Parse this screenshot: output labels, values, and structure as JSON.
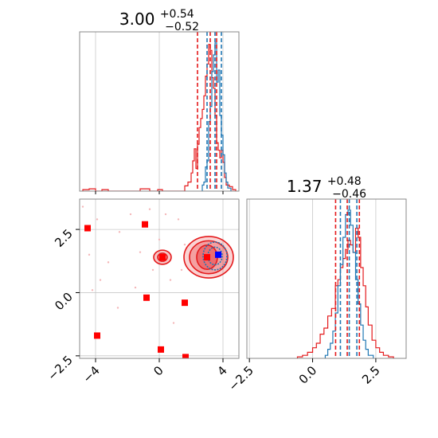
{
  "colors": {
    "posterior_a": "#e41a1c",
    "posterior_b": "#1f77b4",
    "square_a": "#ff0000",
    "square_b": "#0000ff",
    "grid": "#c8c8c8",
    "frame": "#888888"
  },
  "chart_data": {
    "type": "corner",
    "grid": true,
    "parameters": [
      {
        "title": {
          "value": "3.00",
          "upper": "+0.54",
          "lower": "−0.52"
        },
        "xlim": [
          -5.0,
          5.0
        ],
        "ticks": [
          -4,
          0,
          4
        ],
        "tick_labels": [
          "−4",
          "0",
          "4"
        ],
        "quantiles_a": [
          2.4,
          3.2,
          3.6
        ],
        "quantiles_b": [
          3.0,
          3.5,
          3.9
        ]
      },
      {
        "title": {
          "value": "1.37",
          "upper": "+0.48",
          "lower": "−0.46"
        },
        "xlim": [
          -2.6,
          3.7
        ],
        "ticks": [
          -2.5,
          0.0,
          2.5
        ],
        "tick_labels": [
          "−2.5",
          "0.0",
          "2.5"
        ],
        "quantiles_a": [
          0.91,
          1.37,
          1.85
        ],
        "quantiles_b": [
          1.1,
          1.45,
          1.75
        ]
      }
    ],
    "hist1_a": [
      {
        "x0": -4.8,
        "x1": -4.4,
        "h": 0.01
      },
      {
        "x0": -4.4,
        "x1": -4.0,
        "h": 0.015
      },
      {
        "x0": -3.6,
        "x1": -3.2,
        "h": 0.01
      },
      {
        "x0": -1.2,
        "x1": -0.6,
        "h": 0.015
      },
      {
        "x0": -0.1,
        "x1": 0.2,
        "h": 0.01
      },
      {
        "x0": 1.6,
        "x1": 1.8,
        "h": 0.035
      },
      {
        "x0": 1.8,
        "x1": 2.0,
        "h": 0.06
      },
      {
        "x0": 2.0,
        "x1": 2.1,
        "h": 0.12
      },
      {
        "x0": 2.1,
        "x1": 2.2,
        "h": 0.2
      },
      {
        "x0": 2.2,
        "x1": 2.3,
        "h": 0.28
      },
      {
        "x0": 2.3,
        "x1": 2.4,
        "h": 0.15
      },
      {
        "x0": 2.4,
        "x1": 2.5,
        "h": 0.31
      },
      {
        "x0": 2.5,
        "x1": 2.6,
        "h": 0.42
      },
      {
        "x0": 2.6,
        "x1": 2.7,
        "h": 0.48
      },
      {
        "x0": 2.7,
        "x1": 2.8,
        "h": 0.54
      },
      {
        "x0": 2.8,
        "x1": 2.9,
        "h": 0.63
      },
      {
        "x0": 2.9,
        "x1": 3.0,
        "h": 0.76
      },
      {
        "x0": 3.0,
        "x1": 3.1,
        "h": 0.84
      },
      {
        "x0": 3.1,
        "x1": 3.2,
        "h": 0.97
      },
      {
        "x0": 3.2,
        "x1": 3.3,
        "h": 0.93
      },
      {
        "x0": 3.3,
        "x1": 3.4,
        "h": 0.75
      },
      {
        "x0": 3.4,
        "x1": 3.5,
        "h": 0.68
      },
      {
        "x0": 3.5,
        "x1": 3.6,
        "h": 0.5
      },
      {
        "x0": 3.6,
        "x1": 3.7,
        "h": 0.32
      },
      {
        "x0": 3.7,
        "x1": 3.8,
        "h": 0.27
      },
      {
        "x0": 3.8,
        "x1": 3.9,
        "h": 0.22
      },
      {
        "x0": 3.9,
        "x1": 4.0,
        "h": 0.27
      },
      {
        "x0": 4.0,
        "x1": 4.1,
        "h": 0.19
      },
      {
        "x0": 4.1,
        "x1": 4.2,
        "h": 0.09
      },
      {
        "x0": 4.2,
        "x1": 4.4,
        "h": 0.04
      },
      {
        "x0": 4.4,
        "x1": 4.6,
        "h": 0.03
      },
      {
        "x0": 4.6,
        "x1": 4.8,
        "h": 0.01
      }
    ],
    "hist1_b": [
      {
        "x0": 2.7,
        "x1": 2.8,
        "h": 0.04
      },
      {
        "x0": 2.8,
        "x1": 2.9,
        "h": 0.06
      },
      {
        "x0": 2.9,
        "x1": 3.0,
        "h": 0.16
      },
      {
        "x0": 3.0,
        "x1": 3.1,
        "h": 0.2
      },
      {
        "x0": 3.1,
        "x1": 3.2,
        "h": 0.46
      },
      {
        "x0": 3.2,
        "x1": 3.3,
        "h": 0.56
      },
      {
        "x0": 3.3,
        "x1": 3.4,
        "h": 0.79
      },
      {
        "x0": 3.4,
        "x1": 3.5,
        "h": 0.9
      },
      {
        "x0": 3.5,
        "x1": 3.6,
        "h": 0.98
      },
      {
        "x0": 3.6,
        "x1": 3.7,
        "h": 0.72
      },
      {
        "x0": 3.7,
        "x1": 3.8,
        "h": 0.8
      },
      {
        "x0": 3.8,
        "x1": 3.9,
        "h": 0.5
      },
      {
        "x0": 3.9,
        "x1": 4.0,
        "h": 0.37
      },
      {
        "x0": 4.0,
        "x1": 4.1,
        "h": 0.24
      },
      {
        "x0": 4.1,
        "x1": 4.2,
        "h": 0.12
      },
      {
        "x0": 4.2,
        "x1": 4.3,
        "h": 0.06
      },
      {
        "x0": 4.3,
        "x1": 4.5,
        "h": 0.02
      }
    ],
    "hist2_a": [
      {
        "x0": -0.6,
        "x1": -0.4,
        "h": 0.01
      },
      {
        "x0": -0.4,
        "x1": -0.2,
        "h": 0.02
      },
      {
        "x0": -0.2,
        "x1": 0.0,
        "h": 0.04
      },
      {
        "x0": 0.0,
        "x1": 0.15,
        "h": 0.07
      },
      {
        "x0": 0.15,
        "x1": 0.3,
        "h": 0.1
      },
      {
        "x0": 0.3,
        "x1": 0.45,
        "h": 0.16
      },
      {
        "x0": 0.45,
        "x1": 0.6,
        "h": 0.2
      },
      {
        "x0": 0.6,
        "x1": 0.75,
        "h": 0.28
      },
      {
        "x0": 0.75,
        "x1": 0.9,
        "h": 0.33
      },
      {
        "x0": 0.9,
        "x1": 1.0,
        "h": 0.48
      },
      {
        "x0": 1.0,
        "x1": 1.1,
        "h": 0.52
      },
      {
        "x0": 1.1,
        "x1": 1.2,
        "h": 0.6
      },
      {
        "x0": 1.2,
        "x1": 1.3,
        "h": 0.66
      },
      {
        "x0": 1.3,
        "x1": 1.4,
        "h": 0.72
      },
      {
        "x0": 1.4,
        "x1": 1.5,
        "h": 0.78
      },
      {
        "x0": 1.5,
        "x1": 1.6,
        "h": 0.75
      },
      {
        "x0": 1.6,
        "x1": 1.7,
        "h": 0.7
      },
      {
        "x0": 1.7,
        "x1": 1.8,
        "h": 0.86
      },
      {
        "x0": 1.8,
        "x1": 1.9,
        "h": 0.8
      },
      {
        "x0": 1.9,
        "x1": 2.0,
        "h": 0.6
      },
      {
        "x0": 2.0,
        "x1": 2.1,
        "h": 0.48
      },
      {
        "x0": 2.1,
        "x1": 2.2,
        "h": 0.34
      },
      {
        "x0": 2.2,
        "x1": 2.35,
        "h": 0.22
      },
      {
        "x0": 2.35,
        "x1": 2.5,
        "h": 0.12
      },
      {
        "x0": 2.5,
        "x1": 2.65,
        "h": 0.07
      },
      {
        "x0": 2.65,
        "x1": 2.8,
        "h": 0.04
      },
      {
        "x0": 2.8,
        "x1": 3.0,
        "h": 0.02
      },
      {
        "x0": 3.0,
        "x1": 3.2,
        "h": 0.01
      }
    ],
    "hist2_b": [
      {
        "x0": 0.5,
        "x1": 0.6,
        "h": 0.02
      },
      {
        "x0": 0.6,
        "x1": 0.7,
        "h": 0.06
      },
      {
        "x0": 0.7,
        "x1": 0.8,
        "h": 0.1
      },
      {
        "x0": 0.8,
        "x1": 0.9,
        "h": 0.18
      },
      {
        "x0": 0.9,
        "x1": 1.0,
        "h": 0.3
      },
      {
        "x0": 1.0,
        "x1": 1.1,
        "h": 0.48
      },
      {
        "x0": 1.1,
        "x1": 1.2,
        "h": 0.62
      },
      {
        "x0": 1.2,
        "x1": 1.3,
        "h": 0.8
      },
      {
        "x0": 1.3,
        "x1": 1.4,
        "h": 0.95
      },
      {
        "x0": 1.4,
        "x1": 1.5,
        "h": 0.98
      },
      {
        "x0": 1.5,
        "x1": 1.6,
        "h": 0.88
      },
      {
        "x0": 1.6,
        "x1": 1.7,
        "h": 0.7
      },
      {
        "x0": 1.7,
        "x1": 1.8,
        "h": 0.52
      },
      {
        "x0": 1.8,
        "x1": 1.9,
        "h": 0.36
      },
      {
        "x0": 1.9,
        "x1": 2.0,
        "h": 0.22
      },
      {
        "x0": 2.0,
        "x1": 2.1,
        "h": 0.12
      },
      {
        "x0": 2.1,
        "x1": 2.2,
        "h": 0.06
      },
      {
        "x0": 2.2,
        "x1": 2.4,
        "h": 0.02
      }
    ],
    "contours_a": [
      {
        "cx": 3.1,
        "cy": 1.4,
        "rx": 1.55,
        "ry": 0.82,
        "alpha": 0.35
      },
      {
        "cx": 3.1,
        "cy": 1.4,
        "rx": 1.2,
        "ry": 0.65,
        "alpha": 0.5
      },
      {
        "cx": 3.0,
        "cy": 1.4,
        "rx": 0.65,
        "ry": 0.48,
        "alpha": 0.7
      },
      {
        "cx": 0.2,
        "cy": 1.4,
        "rx": 0.55,
        "ry": 0.28,
        "alpha": 0.45
      },
      {
        "cx": 0.2,
        "cy": 1.4,
        "rx": 0.3,
        "ry": 0.16,
        "alpha": 0.7
      }
    ],
    "contours_b": [
      {
        "cx": 3.5,
        "cy": 1.45,
        "rx": 0.75,
        "ry": 0.55
      },
      {
        "cx": 3.5,
        "cy": 1.45,
        "rx": 0.45,
        "ry": 0.35
      }
    ],
    "squares_a": [
      {
        "x": -4.5,
        "y": 2.55
      },
      {
        "x": -0.9,
        "y": 2.7
      },
      {
        "x": 0.2,
        "y": 1.4
      },
      {
        "x": -0.8,
        "y": -0.2
      },
      {
        "x": 1.6,
        "y": -0.4
      },
      {
        "x": -3.9,
        "y": -1.7
      },
      {
        "x": 0.1,
        "y": -2.25
      },
      {
        "x": 1.65,
        "y": -2.55
      },
      {
        "x": 3.0,
        "y": 1.4
      }
    ],
    "squares_b": [
      {
        "x": 3.7,
        "y": 1.5
      }
    ],
    "scatter_faint": [
      {
        "x": -4.8,
        "y": 3.4
      },
      {
        "x": -4.4,
        "y": 1.5
      },
      {
        "x": -3.9,
        "y": 2.9
      },
      {
        "x": -3.2,
        "y": 1.2
      },
      {
        "x": -3.7,
        "y": 0.5
      },
      {
        "x": -2.5,
        "y": 2.4
      },
      {
        "x": -1.8,
        "y": 3.1
      },
      {
        "x": -1.2,
        "y": 1.6
      },
      {
        "x": -0.6,
        "y": 3.3
      },
      {
        "x": 0.0,
        "y": 2.1
      },
      {
        "x": 0.4,
        "y": 3.1
      },
      {
        "x": -0.4,
        "y": 0.9
      },
      {
        "x": 0.7,
        "y": 0.5
      },
      {
        "x": -1.5,
        "y": 0.2
      },
      {
        "x": 1.2,
        "y": 2.9
      },
      {
        "x": 1.6,
        "y": 1.9
      },
      {
        "x": -4.2,
        "y": 0.1
      },
      {
        "x": -2.6,
        "y": -0.6
      },
      {
        "x": 0.9,
        "y": -1.2
      },
      {
        "x": 1.4,
        "y": 0.9
      }
    ]
  }
}
